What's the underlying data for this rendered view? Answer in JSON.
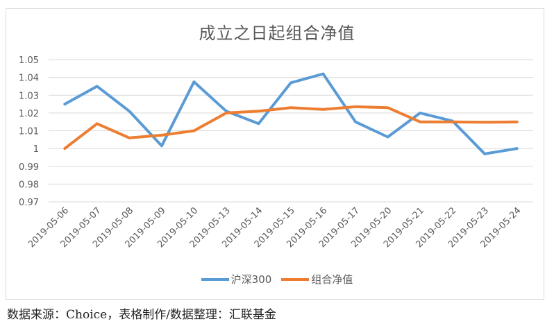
{
  "chart_data": {
    "type": "line",
    "title": "成立之日起组合净值",
    "xlabel": "",
    "ylabel": "",
    "ylim": [
      0.97,
      1.05
    ],
    "yticks": [
      "0.97",
      "0.98",
      "0.99",
      "1",
      "1.01",
      "1.02",
      "1.03",
      "1.04",
      "1.05"
    ],
    "grid": true,
    "legend_position": "bottom",
    "categories": [
      "2019-05-06",
      "2019-05-07",
      "2019-05-08",
      "2019-05-09",
      "2019-05-10",
      "2019-05-13",
      "2019-05-14",
      "2019-05-15",
      "2019-05-16",
      "2019-05-17",
      "2019-05-20",
      "2019-05-21",
      "2019-05-22",
      "2019-05-23",
      "2019-05-24"
    ],
    "series": [
      {
        "name": "沪深300",
        "color": "#5B9BD5",
        "values": [
          1.025,
          1.035,
          1.021,
          1.0015,
          1.0375,
          1.021,
          1.014,
          1.037,
          1.042,
          1.015,
          1.0065,
          1.02,
          1.0155,
          0.997,
          1.0
        ]
      },
      {
        "name": "组合净值",
        "color": "#ED7D31",
        "values": [
          1.0,
          1.014,
          1.006,
          1.0075,
          1.01,
          1.02,
          1.021,
          1.023,
          1.022,
          1.0235,
          1.023,
          1.015,
          1.015,
          1.0148,
          1.015
        ]
      }
    ]
  },
  "header": {
    "title": "成立之日起组合净值"
  },
  "legend": {
    "items": [
      {
        "label": "沪深300",
        "color": "#5B9BD5"
      },
      {
        "label": "组合净值",
        "color": "#ED7D31"
      }
    ]
  },
  "footer": {
    "source": "数据来源：Choice，表格制作/数据整理：汇联基金"
  }
}
